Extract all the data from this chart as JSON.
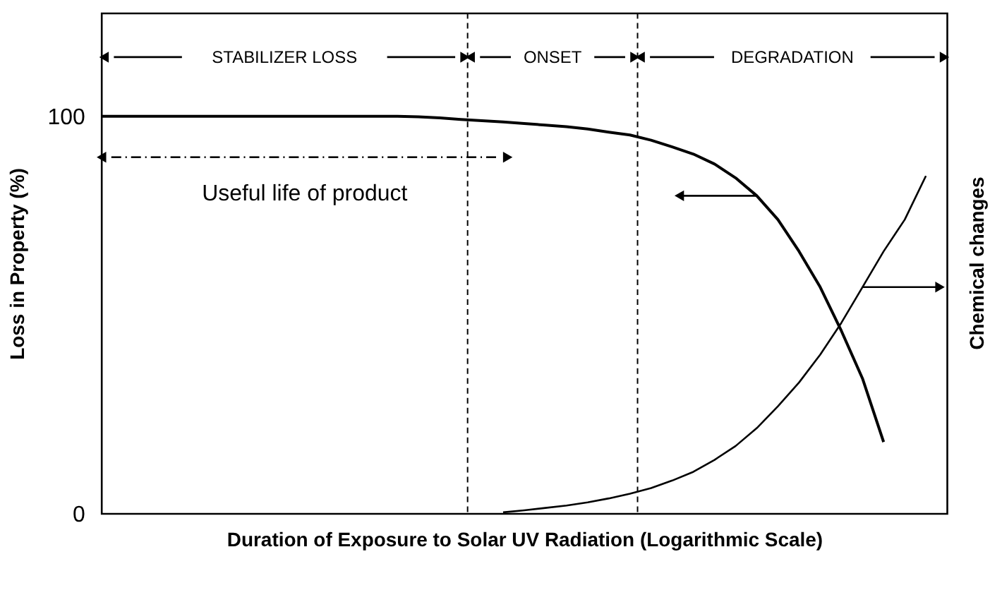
{
  "chart_data": {
    "type": "line",
    "xlabel": "Duration of Exposure to Solar UV Radiation (Logarithmic Scale)",
    "ylabel": "Loss in Property (%)",
    "categories": [
      null,
      null,
      null,
      null,
      null,
      null,
      null,
      null,
      null,
      null,
      null,
      null,
      null,
      null,
      null,
      null,
      null,
      null,
      null,
      null,
      null,
      null,
      null,
      null,
      null,
      null,
      null,
      null,
      null,
      null,
      null,
      null,
      null,
      null,
      null,
      null,
      null,
      null,
      null,
      null,
      null
    ],
    "ylim": [
      0,
      126
    ],
    "yticks": [
      0,
      100
    ],
    "tick_labels": "y",
    "grid": false,
    "marker": "none",
    "line_style": "solid",
    "series": [
      {
        "color": "#000000",
        "values": [
          100,
          100,
          100,
          100,
          100,
          100,
          100,
          100,
          100,
          100,
          100,
          100,
          100,
          100,
          100,
          99.9,
          99.6,
          99.2,
          98.9,
          98.6,
          98.2,
          97.8,
          97.4,
          96.8,
          96,
          95.3,
          94,
          92.3,
          90.5,
          88,
          84.5,
          80,
          74,
          66,
          57,
          46,
          34,
          18,
          null,
          null,
          null
        ]
      },
      {
        "color": "#000000",
        "values": [
          null,
          null,
          null,
          null,
          null,
          null,
          null,
          null,
          null,
          null,
          null,
          null,
          null,
          null,
          null,
          null,
          null,
          null,
          null,
          0.3,
          0.8,
          1.4,
          2,
          2.8,
          3.8,
          5,
          6.4,
          8.3,
          10.5,
          13.5,
          17,
          21.5,
          27,
          33,
          40,
          48,
          57,
          66,
          74,
          85,
          null
        ]
      }
    ],
    "annotations": [
      "STABILIZER LOSS",
      "ONSET",
      "DEGRADATION",
      "Useful life of product",
      "Chemical changes"
    ]
  }
}
